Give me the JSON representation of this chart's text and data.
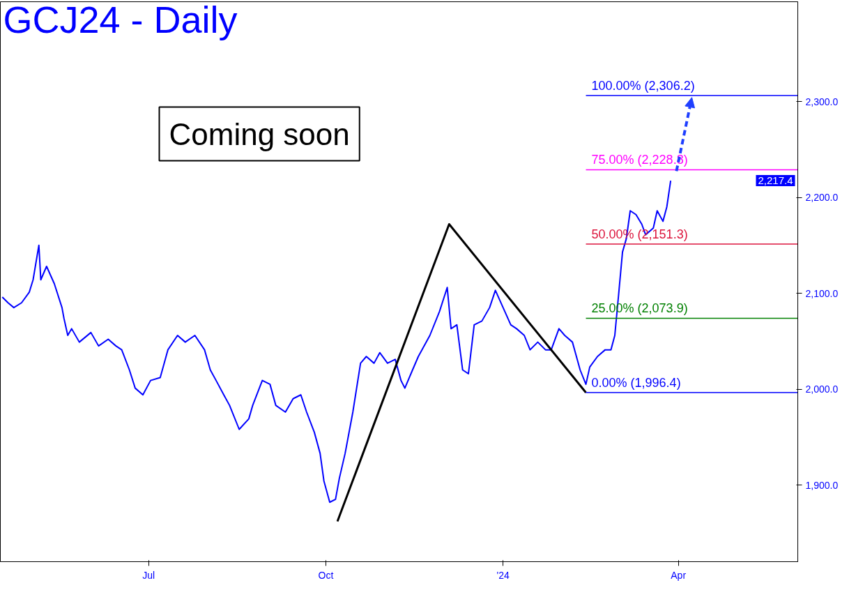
{
  "chart_data": {
    "type": "line",
    "title": "GCJ24 - Daily",
    "xlim": [
      "2023-04-15",
      "2024-06-02"
    ],
    "xticks": [
      {
        "value": "2023-07-01",
        "label": "Jul"
      },
      {
        "value": "2023-10-01",
        "label": "Oct"
      },
      {
        "value": "2024-01-01",
        "label": "'24"
      },
      {
        "value": "2024-04-01",
        "label": "Apr"
      }
    ],
    "ylim": [
      1820,
      2404
    ],
    "yticks": [
      {
        "value": 1900,
        "label": "1,900.0"
      },
      {
        "value": 2000,
        "label": "2,000.0"
      },
      {
        "value": 2100,
        "label": "2,100.0"
      },
      {
        "value": 2200,
        "label": "2,200.0"
      },
      {
        "value": 2300,
        "label": "2,300.0"
      }
    ],
    "grid": false,
    "series": [
      {
        "color": "#0000ff",
        "x": [
          "2023-04-16",
          "2023-04-19",
          "2023-04-22",
          "2023-04-26",
          "2023-04-30",
          "2023-05-02",
          "2023-05-05",
          "2023-05-06",
          "2023-05-09",
          "2023-05-13",
          "2023-05-17",
          "2023-05-18",
          "2023-05-20",
          "2023-05-22",
          "2023-05-26",
          "2023-06-01",
          "2023-06-05",
          "2023-06-10",
          "2023-06-14",
          "2023-06-17",
          "2023-06-21",
          "2023-06-24",
          "2023-06-28",
          "2023-07-02",
          "2023-07-07",
          "2023-07-11",
          "2023-07-16",
          "2023-07-20",
          "2023-07-25",
          "2023-07-30",
          "2023-08-02",
          "2023-08-05",
          "2023-08-09",
          "2023-08-12",
          "2023-08-17",
          "2023-08-22",
          "2023-08-24",
          "2023-08-29",
          "2023-09-02",
          "2023-09-05",
          "2023-09-10",
          "2023-09-14",
          "2023-09-18",
          "2023-09-21",
          "2023-09-25",
          "2023-09-28",
          "2023-09-30",
          "2023-10-03",
          "2023-10-06",
          "2023-10-08",
          "2023-10-11",
          "2023-10-15",
          "2023-10-19",
          "2023-10-22",
          "2023-10-26",
          "2023-10-29",
          "2023-11-02",
          "2023-11-06",
          "2023-11-09",
          "2023-11-11",
          "2023-11-15",
          "2023-11-18",
          "2023-11-24",
          "2023-11-29",
          "2023-12-03",
          "2023-12-05",
          "2023-12-08",
          "2023-12-11",
          "2023-12-14",
          "2023-12-17",
          "2023-12-21",
          "2023-12-25",
          "2023-12-28",
          "2024-01-01",
          "2024-01-05",
          "2024-01-08",
          "2024-01-12",
          "2024-01-15",
          "2024-01-19",
          "2024-01-23",
          "2024-01-26",
          "2024-01-30",
          "2024-02-02",
          "2024-02-06",
          "2024-02-10",
          "2024-02-13",
          "2024-02-15",
          "2024-02-19",
          "2024-02-23",
          "2024-02-26",
          "2024-02-28",
          "2024-03-01",
          "2024-03-03",
          "2024-03-05",
          "2024-03-07",
          "2024-03-10",
          "2024-03-13",
          "2024-03-15",
          "2024-03-19",
          "2024-03-21",
          "2024-03-24",
          "2024-03-26",
          "2024-03-28"
        ],
        "values": [
          2096,
          2090,
          2085,
          2090,
          2101,
          2114,
          2150,
          2114,
          2128,
          2110,
          2085,
          2074,
          2056,
          2063,
          2049,
          2059,
          2045,
          2052,
          2045,
          2041,
          2020,
          2001,
          1994,
          2009,
          2012,
          2041,
          2056,
          2049,
          2056,
          2041,
          2020,
          2009,
          1994,
          1983,
          1958,
          1969,
          1983,
          2009,
          2005,
          1983,
          1976,
          1990,
          1994,
          1976,
          1955,
          1933,
          1904,
          1882,
          1885,
          1907,
          1933,
          1976,
          2027,
          2034,
          2027,
          2038,
          2027,
          2031,
          2009,
          2001,
          2020,
          2034,
          2056,
          2081,
          2106,
          2063,
          2067,
          2020,
          2016,
          2067,
          2071,
          2085,
          2103,
          2085,
          2067,
          2063,
          2056,
          2041,
          2049,
          2041,
          2041,
          2063,
          2056,
          2049,
          2020,
          2005,
          2023,
          2034,
          2041,
          2041,
          2056,
          2099,
          2143,
          2157,
          2186,
          2182,
          2172,
          2161,
          2168,
          2186,
          2175,
          2190,
          2217.4
        ]
      },
      {
        "color": "#000000",
        "x": [
          "2023-10-07",
          "2023-12-04",
          "2024-02-13"
        ],
        "values": [
          1862,
          2172,
          1996.4
        ]
      }
    ],
    "ref_lines": [
      {
        "axis": "y",
        "value": 2306.2,
        "label": "100.00% (2,306.2)",
        "color": "#0000ff"
      },
      {
        "axis": "y",
        "value": 2228.8,
        "label": "75.00% (2,228.8)",
        "color": "#ff00ff"
      },
      {
        "axis": "y",
        "value": 2151.3,
        "label": "50.00% (2,151.3)",
        "color": "#dc143c"
      },
      {
        "axis": "y",
        "value": 2073.9,
        "label": "25.00% (2,073.9)",
        "color": "#008000"
      },
      {
        "axis": "y",
        "value": 1996.4,
        "label": "0.00% (1,996.4)",
        "color": "#0000ff"
      }
    ],
    "annotations": [
      "Coming soon",
      "2,217.4"
    ]
  }
}
